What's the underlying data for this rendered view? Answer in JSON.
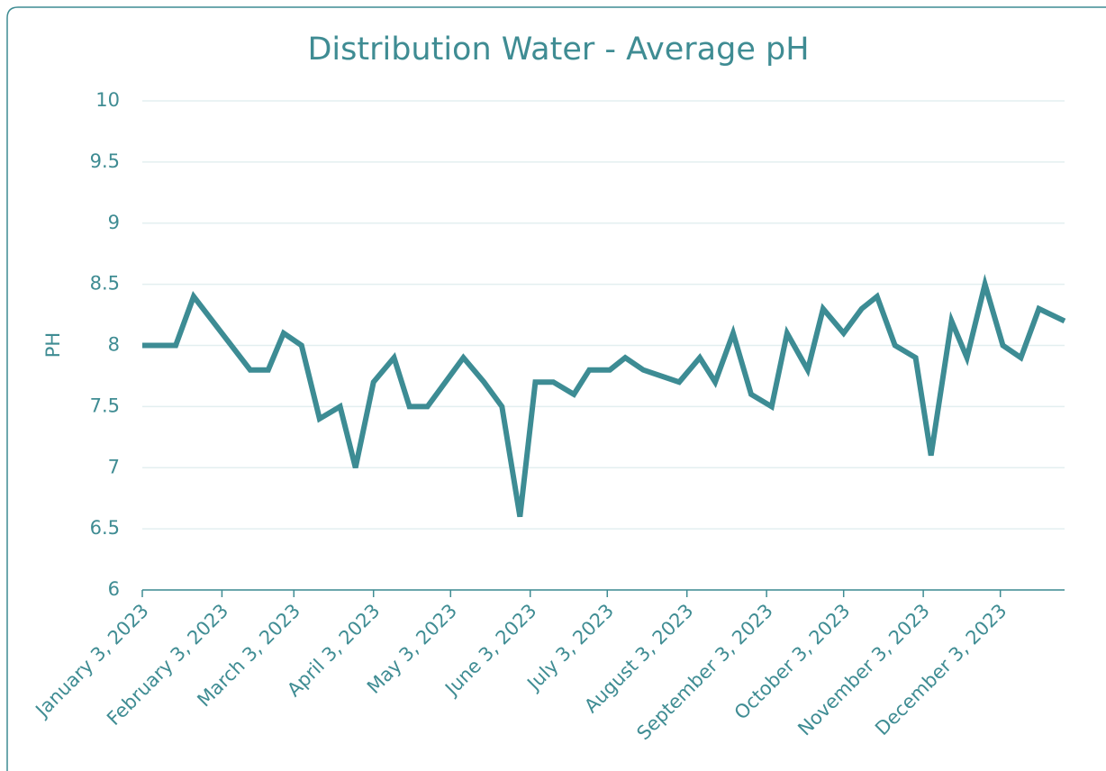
{
  "chart_data": {
    "type": "line",
    "title": "Distribution Water - Average pH",
    "y_label": "PH",
    "x": [
      "2023-01-03",
      "2023-01-16",
      "2023-01-23",
      "2023-02-14",
      "2023-02-21",
      "2023-02-27",
      "2023-03-06",
      "2023-03-13",
      "2023-03-21",
      "2023-03-27",
      "2023-04-03",
      "2023-04-11",
      "2023-04-17",
      "2023-04-24",
      "2023-05-08",
      "2023-05-16",
      "2023-05-23",
      "2023-05-30",
      "2023-06-05",
      "2023-06-12",
      "2023-06-20",
      "2023-06-26",
      "2023-07-04",
      "2023-07-10",
      "2023-07-17",
      "2023-07-31",
      "2023-08-08",
      "2023-08-14",
      "2023-08-21",
      "2023-08-28",
      "2023-09-05",
      "2023-09-11",
      "2023-09-19",
      "2023-09-25",
      "2023-10-03",
      "2023-10-10",
      "2023-10-16",
      "2023-10-23",
      "2023-10-31",
      "2023-11-06",
      "2023-11-14",
      "2023-11-20",
      "2023-11-27",
      "2023-12-04",
      "2023-12-11",
      "2023-12-18",
      "2023-12-28"
    ],
    "series": [
      {
        "name": "Average pH",
        "color": "#3d8c94",
        "values": [
          8.0,
          8.0,
          8.4,
          7.8,
          7.8,
          8.1,
          8.0,
          7.4,
          7.5,
          7.0,
          7.7,
          7.9,
          7.5,
          7.5,
          7.9,
          7.7,
          7.5,
          6.6,
          7.7,
          7.7,
          7.6,
          7.8,
          7.8,
          7.9,
          7.8,
          7.7,
          7.9,
          7.7,
          8.1,
          7.6,
          7.5,
          8.1,
          7.8,
          8.3,
          8.1,
          8.3,
          8.4,
          8.0,
          7.9,
          7.1,
          8.2,
          7.9,
          8.5,
          8.0,
          7.9,
          8.3,
          8.2
        ]
      }
    ],
    "xlim": [
      "2023-01-03",
      "2023-12-28"
    ],
    "xticks": [
      {
        "value": "2023-01-03",
        "label": "January 3, 2023"
      },
      {
        "value": "2023-02-03",
        "label": "February 3, 2023"
      },
      {
        "value": "2023-03-03",
        "label": "March 3, 2023"
      },
      {
        "value": "2023-04-03",
        "label": "April 3, 2023"
      },
      {
        "value": "2023-05-03",
        "label": "May 3, 2023"
      },
      {
        "value": "2023-06-03",
        "label": "June 3, 2023"
      },
      {
        "value": "2023-07-03",
        "label": "July 3, 2023"
      },
      {
        "value": "2023-08-03",
        "label": "August 3, 2023"
      },
      {
        "value": "2023-09-03",
        "label": "September 3, 2023"
      },
      {
        "value": "2023-10-03",
        "label": "October 3, 2023"
      },
      {
        "value": "2023-11-03",
        "label": "November 3, 2023"
      },
      {
        "value": "2023-12-03",
        "label": "December 3, 2023"
      }
    ],
    "ylim": [
      6,
      10
    ],
    "yticks": [
      6,
      6.5,
      7,
      7.5,
      8,
      8.5,
      9,
      9.5,
      10
    ],
    "grid": true
  }
}
